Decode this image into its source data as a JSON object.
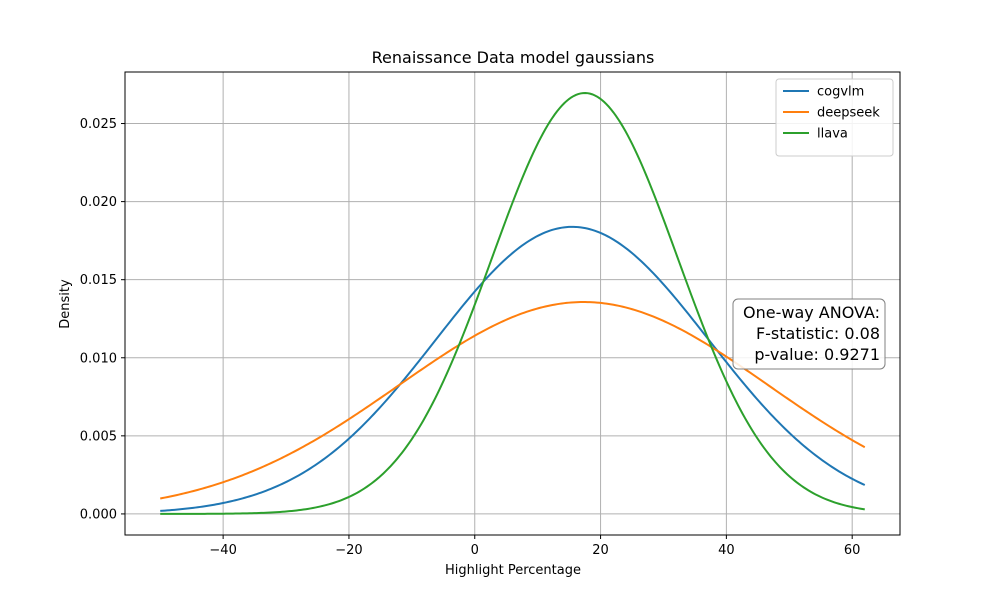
{
  "chart_data": {
    "type": "line",
    "title": "Renaissance Data model gaussians",
    "xlabel": "Highlight Percentage",
    "ylabel": "Density",
    "xlim": [
      -55.6,
      67.6
    ],
    "ylim": [
      -0.00135,
      0.0283
    ],
    "xticks": [
      -40,
      -20,
      0,
      20,
      40,
      60
    ],
    "xtick_labels": [
      "−40",
      "−20",
      "0",
      "20",
      "40",
      "60"
    ],
    "yticks": [
      0.0,
      0.005,
      0.01,
      0.015,
      0.02,
      0.025
    ],
    "ytick_labels": [
      "0.000",
      "0.005",
      "0.010",
      "0.015",
      "0.020",
      "0.025"
    ],
    "x_range": [
      -50,
      62
    ],
    "grid": true,
    "legend_position": "upper-right",
    "series": [
      {
        "name": "cogvlm",
        "color": "#1f77b4",
        "distribution": "normal",
        "mean": 15.5,
        "std": 21.7
      },
      {
        "name": "deepseek",
        "color": "#ff7f0e",
        "distribution": "normal",
        "mean": 17.3,
        "std": 29.4
      },
      {
        "name": "llava",
        "color": "#2ca02c",
        "distribution": "normal",
        "mean": 17.5,
        "std": 14.8
      }
    ],
    "annotation": {
      "lines": [
        "One-way ANOVA:",
        "F-statistic: 0.08",
        "p-value: 0.9271"
      ],
      "position": "right-middle"
    }
  }
}
